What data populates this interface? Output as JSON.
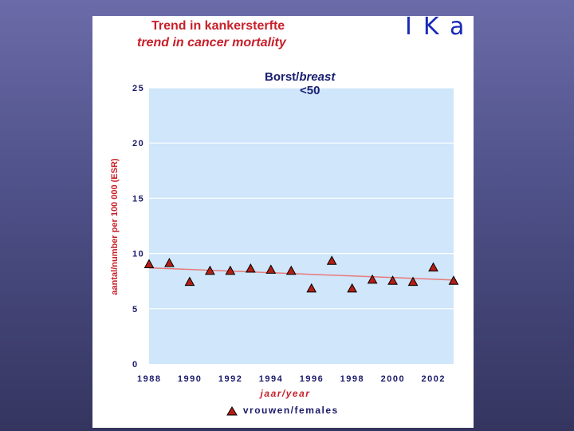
{
  "header": {
    "title_line1": "Trend in kankersterfte",
    "title_line2": "trend in cancer mortality",
    "logo_text": "IKa"
  },
  "colors": {
    "background": "#4e5088",
    "plot_area": "#cfe6fb",
    "title": "#c8202a",
    "trendline": "#e87a7a",
    "marker_fill": "#b41e14",
    "text_dark": "#1a1a6a"
  },
  "chart_data": {
    "type": "scatter",
    "panel_title_part1": "Borst/",
    "panel_title_part2": "breast",
    "panel_title_line2": "<50",
    "xlabel": "jaar/year",
    "ylabel": "aantal/number per 100 000 (ESR)",
    "xlim": [
      1988,
      2003
    ],
    "ylim": [
      0,
      25
    ],
    "x_ticks": [
      1988,
      1990,
      1992,
      1994,
      1996,
      1998,
      2000,
      2002
    ],
    "y_ticks": [
      0,
      5,
      10,
      15,
      20,
      25
    ],
    "grid": "horizontal",
    "legend_position": "bottom",
    "series": [
      {
        "name": "vrouwen/females",
        "marker": "triangle",
        "x": [
          1988,
          1989,
          1990,
          1991,
          1992,
          1993,
          1994,
          1995,
          1996,
          1997,
          1998,
          1999,
          2000,
          2001,
          2002,
          2003
        ],
        "y": [
          9.0,
          9.1,
          7.4,
          8.4,
          8.4,
          8.6,
          8.5,
          8.4,
          6.8,
          9.3,
          6.8,
          7.6,
          7.5,
          7.4,
          8.7,
          7.5
        ]
      }
    ],
    "trendline": {
      "x": [
        1988,
        2003
      ],
      "y": [
        8.7,
        7.6
      ]
    }
  }
}
